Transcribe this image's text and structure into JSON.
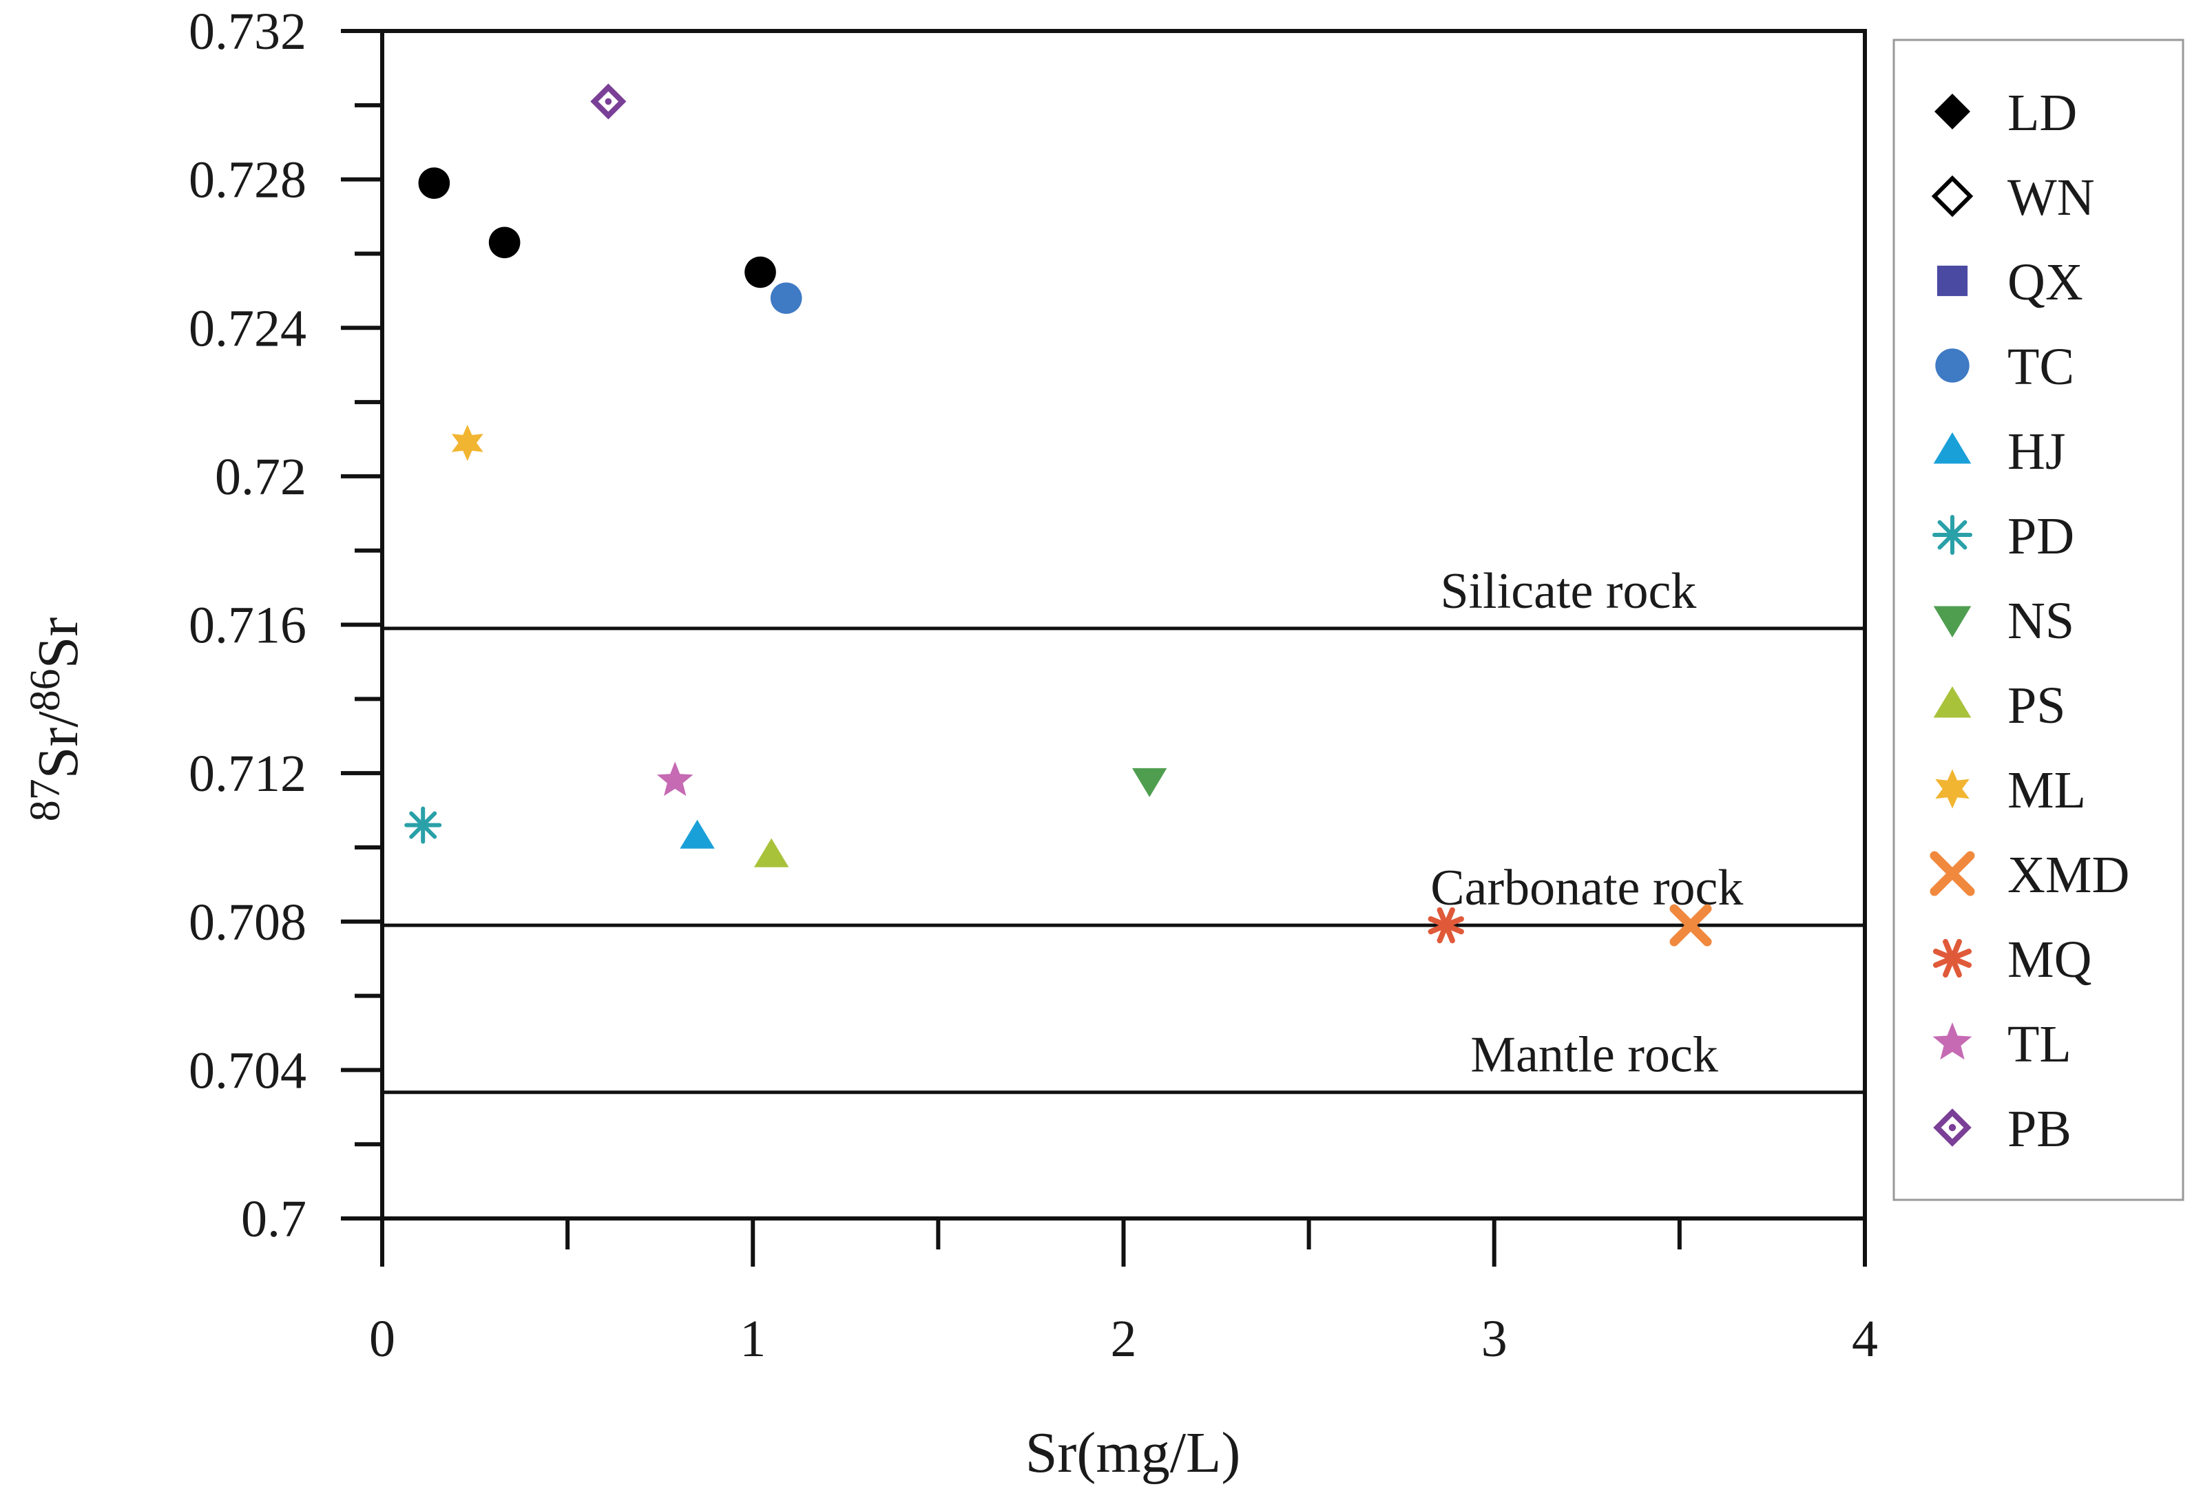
{
  "chart_data": {
    "type": "scatter",
    "xlabel": "Sr(mg/L)",
    "ylabel": {
      "p1": "87",
      "p2": "Sr/",
      "p3": "86",
      "p4": "Sr"
    },
    "xlim": [
      0,
      4
    ],
    "ylim": [
      0.7,
      0.732
    ],
    "x_ticks": [
      {
        "value": 0,
        "label": "0"
      },
      {
        "value": 1,
        "label": "1"
      },
      {
        "value": 2,
        "label": "2"
      },
      {
        "value": 3,
        "label": "3"
      },
      {
        "value": 4,
        "label": "4"
      }
    ],
    "y_ticks": [
      {
        "value": 0.7,
        "label": "0.7"
      },
      {
        "value": 0.704,
        "label": "0.704"
      },
      {
        "value": 0.708,
        "label": "0.708"
      },
      {
        "value": 0.712,
        "label": "0.712"
      },
      {
        "value": 0.716,
        "label": "0.716"
      },
      {
        "value": 0.72,
        "label": "0.72"
      },
      {
        "value": 0.724,
        "label": "0.724"
      },
      {
        "value": 0.728,
        "label": "0.728"
      },
      {
        "value": 0.732,
        "label": "0.732"
      }
    ],
    "x_minor_step": 0.5,
    "y_minor_step": 0.002,
    "grid": false,
    "legend_position": "right",
    "reference_lines": [
      {
        "y": 0.7159,
        "label": "Silicate rock",
        "label_x": 3.2
      },
      {
        "y": 0.7079,
        "label": "Carbonate rock",
        "label_x": 3.25
      },
      {
        "y": 0.7034,
        "label": "Mantle rock",
        "label_x": 3.27
      }
    ],
    "series": [
      {
        "name": "LD",
        "marker": "diamond",
        "color": "#000000",
        "points": [
          [
            0.14,
            0.7279
          ],
          [
            0.33,
            0.7263
          ],
          [
            1.02,
            0.7255
          ]
        ],
        "point_marker": "circle"
      },
      {
        "name": "WN",
        "marker": "diamond-open",
        "color": "#000000",
        "points": []
      },
      {
        "name": "QX",
        "marker": "square",
        "color": "#4b4aa3",
        "points": []
      },
      {
        "name": "TC",
        "marker": "circle",
        "color": "#3f7ac4",
        "points": [
          [
            1.09,
            0.7248
          ]
        ]
      },
      {
        "name": "HJ",
        "marker": "triangle-up",
        "color": "#1aa0d8",
        "points": [
          [
            0.85,
            0.7103
          ]
        ]
      },
      {
        "name": "PD",
        "marker": "asterisk",
        "color": "#2aa0a8",
        "points": [
          [
            0.11,
            0.7106
          ]
        ]
      },
      {
        "name": "NS",
        "marker": "triangle-down",
        "color": "#4f9e50",
        "points": [
          [
            2.07,
            0.7118
          ]
        ]
      },
      {
        "name": "PS",
        "marker": "triangle-up",
        "color": "#a8c23a",
        "points": [
          [
            1.05,
            0.7098
          ]
        ]
      },
      {
        "name": "ML",
        "marker": "star6",
        "color": "#f2b532",
        "points": [
          [
            0.23,
            0.7209
          ]
        ]
      },
      {
        "name": "XMD",
        "marker": "x",
        "color": "#f0883e",
        "points": [
          [
            3.53,
            0.7079
          ]
        ]
      },
      {
        "name": "MQ",
        "marker": "asterisk-bold",
        "color": "#e05a3a",
        "points": [
          [
            2.87,
            0.7079
          ]
        ]
      },
      {
        "name": "TL",
        "marker": "star5",
        "color": "#c56ab3",
        "points": [
          [
            0.79,
            0.7118
          ]
        ]
      },
      {
        "name": "PB",
        "marker": "diamond-dot",
        "color": "#7a3f96",
        "points": [
          [
            0.61,
            0.7301
          ]
        ]
      }
    ]
  }
}
